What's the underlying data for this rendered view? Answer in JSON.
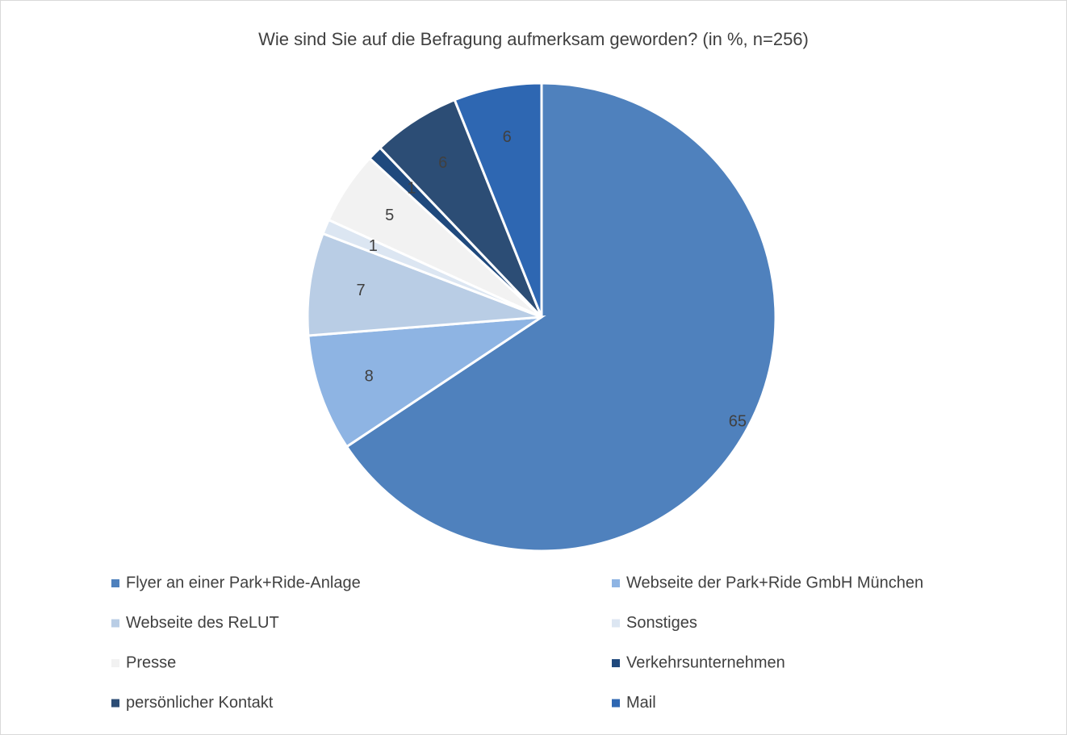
{
  "chart_data": {
    "type": "pie",
    "title": "Wie sind Sie auf die Befragung aufmerksam geworden? (in %, n=256)",
    "categories": [
      "Flyer an einer Park+Ride-Anlage",
      "Webseite der Park+Ride GmbH München",
      "Webseite des ReLUT",
      "Sonstiges",
      "Presse",
      "Verkehrsunternehmen",
      "persönlicher Kontakt",
      "Mail"
    ],
    "values": [
      65,
      8,
      7,
      1,
      5,
      1,
      6,
      6
    ],
    "colors": [
      "#4f81bd",
      "#8eb4e3",
      "#b9cde5",
      "#dce6f2",
      "#f2f2f2",
      "#1f497d",
      "#2c4d75",
      "#2e67b2"
    ],
    "legend": "bottom"
  }
}
